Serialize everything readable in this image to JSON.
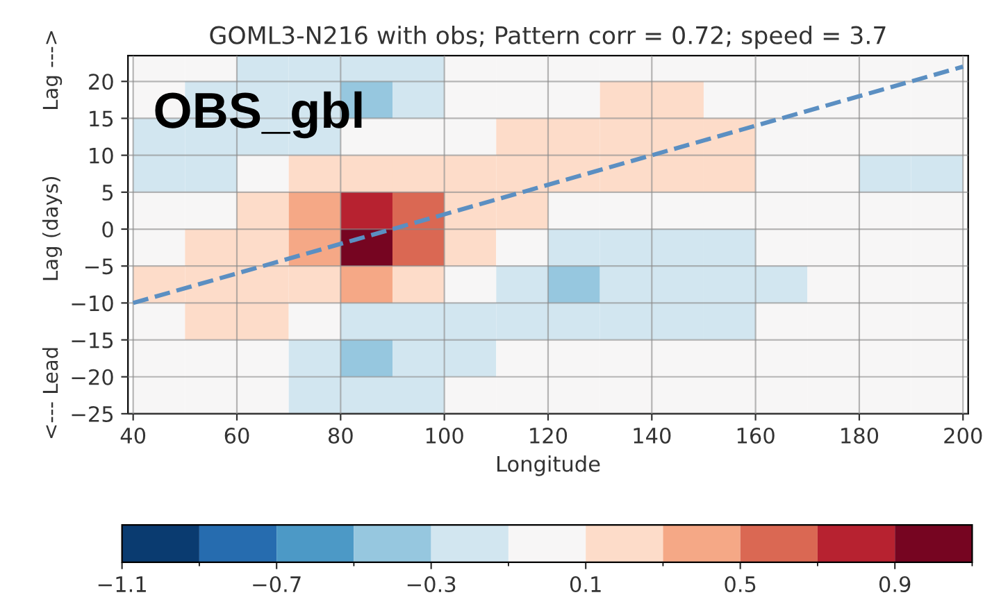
{
  "chart_data": {
    "type": "heatmap",
    "title": "GOML3-N216 with obs; Pattern corr = 0.72; speed = 3.7",
    "xlabel": "Longitude",
    "ylabel": "<--- Lead          Lag (days)          Lag --->",
    "annotations": [
      "OBS_gbl"
    ],
    "x": [
      45,
      55,
      65,
      75,
      85,
      95,
      105,
      115,
      125,
      135,
      145,
      155,
      165,
      175,
      185,
      195
    ],
    "y": [
      22.5,
      17.5,
      12.5,
      7.5,
      2.5,
      -2.5,
      -7.5,
      -12.5,
      -17.5,
      -22.5
    ],
    "cells": [
      [
        0,
        0,
        -0.2,
        -0.2,
        -0.2,
        -0.2,
        0,
        0,
        0,
        0,
        0,
        0,
        0,
        0,
        0,
        0
      ],
      [
        0,
        -0.2,
        -0.2,
        -0.2,
        -0.4,
        -0.2,
        0,
        0,
        0,
        0.2,
        0.2,
        0,
        0,
        0,
        0,
        0
      ],
      [
        -0.2,
        -0.2,
        -0.2,
        -0.2,
        0,
        0,
        0,
        0.2,
        0.2,
        0.2,
        0.2,
        0.2,
        0,
        0,
        0,
        0
      ],
      [
        -0.2,
        -0.2,
        0,
        0.2,
        0.2,
        0.2,
        0.2,
        0.2,
        0.2,
        0.2,
        0.2,
        0.2,
        0,
        0,
        -0.2,
        -0.2
      ],
      [
        0,
        0,
        0.2,
        0.4,
        0.8,
        0.6,
        0.2,
        0.2,
        0,
        0,
        0,
        0,
        0,
        0,
        0,
        0
      ],
      [
        0,
        0.2,
        0.2,
        0.4,
        1.0,
        0.6,
        0.2,
        0,
        -0.2,
        -0.2,
        -0.2,
        -0.2,
        0,
        0,
        0,
        0
      ],
      [
        0.2,
        0.2,
        0.2,
        0.2,
        0.4,
        0.2,
        0,
        -0.2,
        -0.4,
        -0.2,
        -0.2,
        -0.2,
        -0.2,
        0,
        0,
        0
      ],
      [
        0,
        0.2,
        0.2,
        0,
        -0.2,
        -0.2,
        -0.2,
        -0.2,
        -0.2,
        -0.2,
        -0.2,
        -0.2,
        0,
        0,
        0,
        0
      ],
      [
        0,
        0,
        0,
        -0.2,
        -0.4,
        -0.2,
        -0.2,
        0,
        0,
        0,
        0,
        0,
        0,
        0,
        0,
        0
      ],
      [
        0,
        0,
        0,
        -0.2,
        -0.2,
        -0.2,
        0,
        0,
        0,
        0,
        0,
        0,
        0,
        0,
        0,
        0
      ]
    ],
    "clim": [
      -1.1,
      1.1
    ],
    "cticks": [
      -1.1,
      -0.7,
      -0.3,
      0.1,
      0.5,
      0.9
    ],
    "series": [
      {
        "type": "line",
        "x": [
          40,
          200
        ],
        "values": [
          -10,
          22
        ],
        "color": "#5b8fc2",
        "line_style": "dashed"
      }
    ],
    "xlim": [
      39,
      201
    ],
    "xticks": [
      40,
      60,
      80,
      100,
      120,
      140,
      160,
      180,
      200
    ],
    "ylim": [
      -25,
      23.5
    ],
    "yticks": [
      -25,
      -20,
      -15,
      -10,
      -5,
      0,
      5,
      10,
      15,
      20
    ],
    "grid": true
  }
}
